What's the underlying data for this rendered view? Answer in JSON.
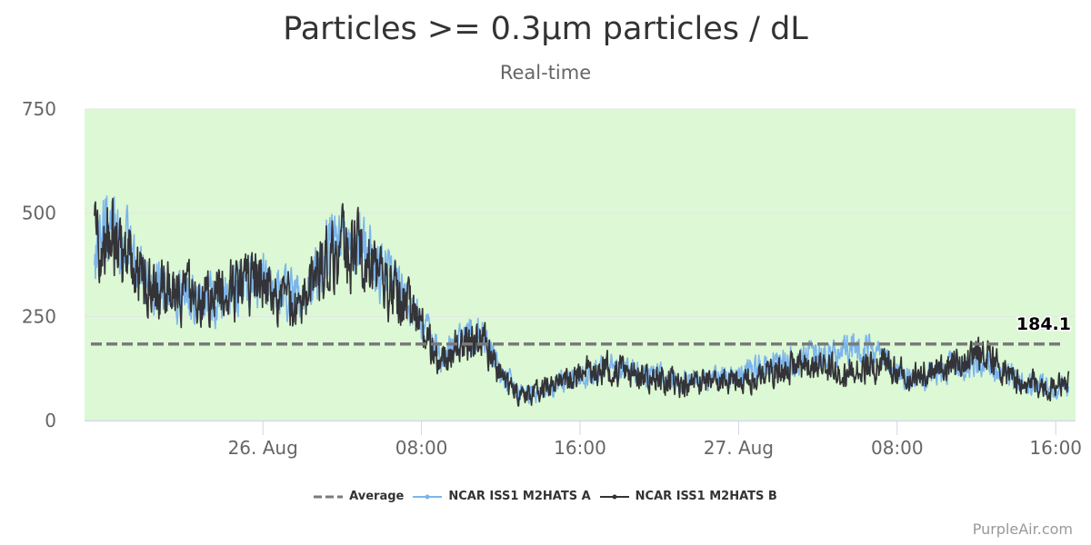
{
  "title": "Particles >= 0.3μm particles / dL",
  "subtitle": "Real-time",
  "credit": "PurpleAir.com",
  "colors": {
    "plot_band": "#dcf8d4",
    "average": "#7a7a7a",
    "series_a": "#7cb5ec",
    "series_b": "#333338",
    "grid": "#e6e6e6"
  },
  "chart_data": {
    "type": "line",
    "title": "Particles >= 0.3μm particles / dL",
    "subtitle": "Real-time",
    "x_range": [
      "2023-08-25 15:00",
      "2023-08-27 17:00"
    ],
    "xticks": [
      {
        "time": "2023-08-26 00:00",
        "label": "26. Aug"
      },
      {
        "time": "2023-08-26 08:00",
        "label": "08:00"
      },
      {
        "time": "2023-08-26 16:00",
        "label": "16:00"
      },
      {
        "time": "2023-08-27 00:00",
        "label": "27. Aug"
      },
      {
        "time": "2023-08-27 08:00",
        "label": "08:00"
      },
      {
        "time": "2023-08-27 16:00",
        "label": "16:00"
      }
    ],
    "ylim": [
      0,
      750
    ],
    "yticks": [
      0,
      250,
      500,
      750
    ],
    "grid": true,
    "legend_position": "bottom-center",
    "average": {
      "name": "Average",
      "value": 184.1,
      "label": "184.1"
    },
    "series": [
      {
        "name": "NCAR ISS1 M2HATS A",
        "noise": 28,
        "points": [
          [
            "2023-08-25 15:30",
            400
          ],
          [
            "2023-08-25 16:00",
            470
          ],
          [
            "2023-08-25 17:00",
            420
          ],
          [
            "2023-08-25 18:00",
            350
          ],
          [
            "2023-08-25 19:00",
            310
          ],
          [
            "2023-08-25 20:00",
            300
          ],
          [
            "2023-08-25 21:00",
            295
          ],
          [
            "2023-08-25 22:00",
            305
          ],
          [
            "2023-08-26 00:00",
            330
          ],
          [
            "2023-08-26 01:00",
            300
          ],
          [
            "2023-08-26 02:00",
            280
          ],
          [
            "2023-08-26 03:00",
            400
          ],
          [
            "2023-08-26 04:00",
            440
          ],
          [
            "2023-08-26 05:00",
            420
          ],
          [
            "2023-08-26 06:00",
            360
          ],
          [
            "2023-08-26 07:00",
            310
          ],
          [
            "2023-08-26 08:00",
            230
          ],
          [
            "2023-08-26 09:00",
            160
          ],
          [
            "2023-08-26 10:00",
            190
          ],
          [
            "2023-08-26 11:00",
            210
          ],
          [
            "2023-08-26 12:00",
            120
          ],
          [
            "2023-08-26 13:00",
            65
          ],
          [
            "2023-08-26 14:00",
            70
          ],
          [
            "2023-08-26 15:00",
            90
          ],
          [
            "2023-08-26 16:00",
            105
          ],
          [
            "2023-08-26 17:00",
            130
          ],
          [
            "2023-08-26 19:00",
            115
          ],
          [
            "2023-08-26 21:00",
            95
          ],
          [
            "2023-08-26 23:00",
            100
          ],
          [
            "2023-08-27 00:00",
            110
          ],
          [
            "2023-08-27 01:00",
            125
          ],
          [
            "2023-08-27 02:00",
            135
          ],
          [
            "2023-08-27 04:00",
            155
          ],
          [
            "2023-08-27 05:00",
            165
          ],
          [
            "2023-08-27 06:00",
            170
          ],
          [
            "2023-08-27 07:00",
            160
          ],
          [
            "2023-08-27 08:00",
            115
          ],
          [
            "2023-08-27 09:00",
            100
          ],
          [
            "2023-08-27 10:00",
            115
          ],
          [
            "2023-08-27 11:00",
            130
          ],
          [
            "2023-08-27 12:00",
            150
          ],
          [
            "2023-08-27 13:00",
            130
          ],
          [
            "2023-08-27 14:00",
            95
          ],
          [
            "2023-08-27 15:00",
            85
          ],
          [
            "2023-08-27 16:00",
            78
          ],
          [
            "2023-08-27 16:40",
            85
          ]
        ]
      },
      {
        "name": "NCAR ISS1 M2HATS B",
        "noise": 32,
        "points": [
          [
            "2023-08-25 15:30",
            430
          ],
          [
            "2023-08-25 16:00",
            450
          ],
          [
            "2023-08-25 17:00",
            400
          ],
          [
            "2023-08-25 18:00",
            340
          ],
          [
            "2023-08-25 19:00",
            315
          ],
          [
            "2023-08-25 20:00",
            305
          ],
          [
            "2023-08-25 21:00",
            300
          ],
          [
            "2023-08-25 22:00",
            310
          ],
          [
            "2023-08-26 00:00",
            340
          ],
          [
            "2023-08-26 01:00",
            290
          ],
          [
            "2023-08-26 02:00",
            260
          ],
          [
            "2023-08-26 03:00",
            380
          ],
          [
            "2023-08-26 04:00",
            420
          ],
          [
            "2023-08-26 05:00",
            400
          ],
          [
            "2023-08-26 06:00",
            340
          ],
          [
            "2023-08-26 07:00",
            290
          ],
          [
            "2023-08-26 08:00",
            220
          ],
          [
            "2023-08-26 09:00",
            140
          ],
          [
            "2023-08-26 10:00",
            185
          ],
          [
            "2023-08-26 11:00",
            200
          ],
          [
            "2023-08-26 12:00",
            110
          ],
          [
            "2023-08-26 13:00",
            55
          ],
          [
            "2023-08-26 14:00",
            70
          ],
          [
            "2023-08-26 15:00",
            95
          ],
          [
            "2023-08-26 16:00",
            110
          ],
          [
            "2023-08-26 17:00",
            130
          ],
          [
            "2023-08-26 19:00",
            110
          ],
          [
            "2023-08-26 21:00",
            90
          ],
          [
            "2023-08-26 23:00",
            95
          ],
          [
            "2023-08-27 00:00",
            100
          ],
          [
            "2023-08-27 01:00",
            110
          ],
          [
            "2023-08-27 02:00",
            120
          ],
          [
            "2023-08-27 04:00",
            135
          ],
          [
            "2023-08-27 05:00",
            120
          ],
          [
            "2023-08-27 06:00",
            125
          ],
          [
            "2023-08-27 07:00",
            140
          ],
          [
            "2023-08-27 08:00",
            115
          ],
          [
            "2023-08-27 09:00",
            110
          ],
          [
            "2023-08-27 10:00",
            120
          ],
          [
            "2023-08-27 11:00",
            135
          ],
          [
            "2023-08-27 12:00",
            160
          ],
          [
            "2023-08-27 13:00",
            140
          ],
          [
            "2023-08-27 14:00",
            95
          ],
          [
            "2023-08-27 15:00",
            85
          ],
          [
            "2023-08-27 16:00",
            85
          ],
          [
            "2023-08-27 16:40",
            90
          ]
        ]
      }
    ]
  }
}
